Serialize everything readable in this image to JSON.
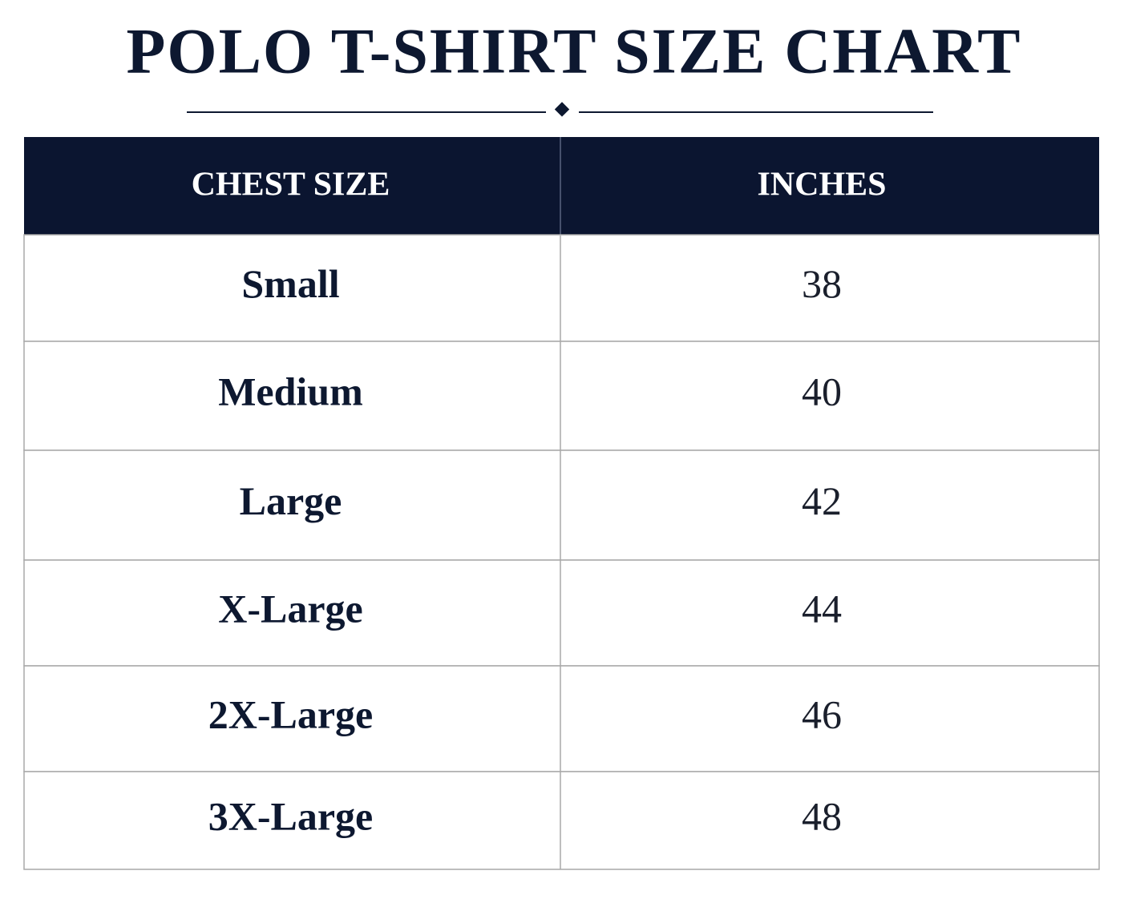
{
  "header": {
    "title": "POLO T-SHIRT SIZE CHART"
  },
  "table": {
    "columns": [
      "CHEST SIZE",
      "INCHES"
    ],
    "rows": [
      [
        "Small",
        38
      ],
      [
        "Medium",
        40
      ],
      [
        "Large",
        42
      ],
      [
        "X-Large",
        44
      ],
      [
        "2X-Large",
        46
      ],
      [
        "3X-Large",
        48
      ]
    ]
  }
}
